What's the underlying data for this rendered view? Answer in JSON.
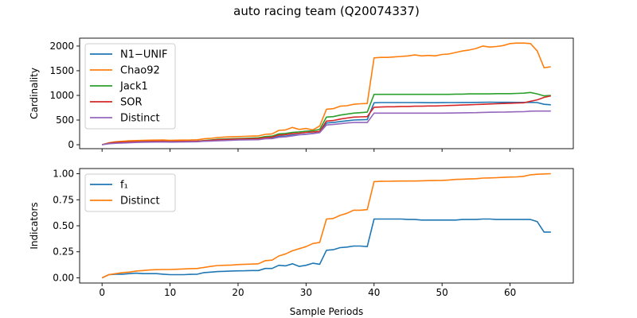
{
  "figure": {
    "title": "auto racing team (Q20074337)"
  },
  "colors": {
    "blue": "#1f77b4",
    "orange": "#ff7f0e",
    "green": "#2ca02c",
    "red": "#d62728",
    "purple": "#9467bd"
  },
  "chart_data": [
    {
      "type": "line",
      "title": "",
      "xlabel": "",
      "ylabel": "Cardinality",
      "xlim": [
        -3.3,
        69.3
      ],
      "ylim": [
        -80,
        2160
      ],
      "xticks": [
        0,
        10,
        20,
        30,
        40,
        50,
        60
      ],
      "xtick_labels": [],
      "yticks": [
        0,
        500,
        1000,
        1500,
        2000
      ],
      "ytick_labels": [
        "0",
        "500",
        "1000",
        "1500",
        "2000"
      ],
      "grid": false,
      "legend": "top-left",
      "series": [
        {
          "name": "N1−UNIF",
          "color": "#1f77b4",
          "x": [
            0,
            1,
            2,
            3,
            4,
            5,
            6,
            7,
            8,
            9,
            10,
            11,
            12,
            13,
            14,
            15,
            16,
            17,
            18,
            19,
            20,
            21,
            22,
            23,
            24,
            25,
            26,
            27,
            28,
            29,
            30,
            31,
            32,
            33,
            34,
            35,
            36,
            37,
            38,
            39,
            40,
            41,
            42,
            43,
            44,
            45,
            46,
            47,
            48,
            49,
            50,
            51,
            52,
            53,
            54,
            55,
            56,
            57,
            58,
            59,
            60,
            61,
            62,
            63,
            64,
            65,
            66
          ],
          "y": [
            0,
            25,
            40,
            45,
            50,
            55,
            60,
            62,
            64,
            66,
            60,
            62,
            63,
            65,
            68,
            75,
            80,
            90,
            95,
            100,
            104,
            108,
            112,
            115,
            130,
            135,
            170,
            175,
            195,
            205,
            215,
            230,
            250,
            440,
            450,
            470,
            485,
            500,
            505,
            510,
            850,
            855,
            855,
            855,
            855,
            855,
            855,
            853,
            852,
            852,
            853,
            854,
            855,
            856,
            857,
            858,
            860,
            862,
            860,
            860,
            860,
            858,
            858,
            860,
            855,
            820,
            810
          ]
        },
        {
          "name": "Chao92",
          "color": "#ff7f0e",
          "x": [
            0,
            1,
            2,
            3,
            4,
            5,
            6,
            7,
            8,
            9,
            10,
            11,
            12,
            13,
            14,
            15,
            16,
            17,
            18,
            19,
            20,
            21,
            22,
            23,
            24,
            25,
            26,
            27,
            28,
            29,
            30,
            31,
            32,
            33,
            34,
            35,
            36,
            37,
            38,
            39,
            40,
            41,
            42,
            43,
            44,
            45,
            46,
            47,
            48,
            49,
            50,
            51,
            52,
            53,
            54,
            55,
            56,
            57,
            58,
            59,
            60,
            61,
            62,
            63,
            64,
            65,
            66
          ],
          "y": [
            0,
            40,
            60,
            70,
            80,
            85,
            90,
            92,
            94,
            96,
            90,
            92,
            94,
            96,
            100,
            120,
            130,
            145,
            155,
            160,
            165,
            170,
            175,
            180,
            210,
            220,
            290,
            300,
            350,
            310,
            330,
            300,
            380,
            720,
            730,
            780,
            790,
            820,
            830,
            835,
            1760,
            1770,
            1770,
            1780,
            1790,
            1800,
            1820,
            1800,
            1810,
            1800,
            1830,
            1840,
            1870,
            1900,
            1920,
            1950,
            2000,
            1980,
            1990,
            2010,
            2050,
            2060,
            2060,
            2050,
            1900,
            1560,
            1580
          ]
        },
        {
          "name": "Jack1",
          "color": "#2ca02c",
          "x": [
            0,
            1,
            2,
            3,
            4,
            5,
            6,
            7,
            8,
            9,
            10,
            11,
            12,
            13,
            14,
            15,
            16,
            17,
            18,
            19,
            20,
            21,
            22,
            23,
            24,
            25,
            26,
            27,
            28,
            29,
            30,
            31,
            32,
            33,
            34,
            35,
            36,
            37,
            38,
            39,
            40,
            41,
            42,
            43,
            44,
            45,
            46,
            47,
            48,
            49,
            50,
            51,
            52,
            53,
            54,
            55,
            56,
            57,
            58,
            59,
            60,
            61,
            62,
            63,
            64,
            65,
            66
          ],
          "y": [
            0,
            30,
            45,
            50,
            55,
            60,
            65,
            67,
            69,
            70,
            65,
            67,
            69,
            70,
            72,
            85,
            95,
            110,
            115,
            120,
            125,
            130,
            135,
            140,
            165,
            175,
            220,
            230,
            250,
            260,
            275,
            285,
            310,
            560,
            570,
            600,
            620,
            640,
            650,
            660,
            1020,
            1020,
            1020,
            1020,
            1020,
            1020,
            1020,
            1020,
            1020,
            1020,
            1020,
            1020,
            1025,
            1025,
            1030,
            1030,
            1030,
            1030,
            1035,
            1035,
            1035,
            1040,
            1045,
            1060,
            1030,
            990,
            1000
          ]
        },
        {
          "name": "SOR",
          "color": "#d62728",
          "x": [
            0,
            1,
            2,
            3,
            4,
            5,
            6,
            7,
            8,
            9,
            10,
            11,
            12,
            13,
            14,
            15,
            16,
            17,
            18,
            19,
            20,
            21,
            22,
            23,
            24,
            25,
            26,
            27,
            28,
            29,
            30,
            31,
            32,
            33,
            34,
            35,
            36,
            37,
            38,
            39,
            40,
            41,
            42,
            43,
            44,
            45,
            46,
            47,
            48,
            49,
            50,
            51,
            52,
            53,
            54,
            55,
            56,
            57,
            58,
            59,
            60,
            61,
            62,
            63,
            64,
            65,
            66
          ],
          "y": [
            0,
            30,
            45,
            50,
            55,
            60,
            65,
            67,
            69,
            70,
            65,
            67,
            69,
            70,
            72,
            80,
            90,
            100,
            105,
            110,
            115,
            118,
            122,
            125,
            145,
            155,
            195,
            205,
            225,
            235,
            250,
            260,
            270,
            480,
            490,
            520,
            540,
            560,
            565,
            570,
            760,
            765,
            770,
            770,
            775,
            775,
            780,
            780,
            785,
            785,
            790,
            795,
            800,
            805,
            810,
            815,
            820,
            825,
            830,
            835,
            840,
            845,
            850,
            880,
            910,
            960,
            990
          ]
        },
        {
          "name": "Distinct",
          "color": "#9467bd",
          "x": [
            0,
            1,
            2,
            3,
            4,
            5,
            6,
            7,
            8,
            9,
            10,
            11,
            12,
            13,
            14,
            15,
            16,
            17,
            18,
            19,
            20,
            21,
            22,
            23,
            24,
            25,
            26,
            27,
            28,
            29,
            30,
            31,
            32,
            33,
            34,
            35,
            36,
            37,
            38,
            39,
            40,
            41,
            42,
            43,
            44,
            45,
            46,
            47,
            48,
            49,
            50,
            51,
            52,
            53,
            54,
            55,
            56,
            57,
            58,
            59,
            60,
            61,
            62,
            63,
            64,
            65,
            66
          ],
          "y": [
            0,
            20,
            30,
            35,
            40,
            45,
            50,
            52,
            54,
            56,
            52,
            54,
            56,
            58,
            60,
            70,
            75,
            80,
            85,
            90,
            95,
            98,
            100,
            102,
            120,
            125,
            150,
            160,
            180,
            200,
            210,
            225,
            245,
            400,
            410,
            425,
            440,
            450,
            450,
            450,
            640,
            640,
            640,
            640,
            640,
            640,
            640,
            640,
            640,
            640,
            640,
            642,
            644,
            646,
            648,
            650,
            655,
            658,
            660,
            662,
            665,
            668,
            670,
            680,
            682,
            683,
            683
          ]
        }
      ]
    },
    {
      "type": "line",
      "title": "",
      "xlabel": "Sample Periods",
      "ylabel": "Indicators",
      "xlim": [
        -3.3,
        69.3
      ],
      "ylim": [
        -0.05,
        1.05
      ],
      "xticks": [
        0,
        10,
        20,
        30,
        40,
        50,
        60
      ],
      "xtick_labels": [
        "0",
        "10",
        "20",
        "30",
        "40",
        "50",
        "60"
      ],
      "yticks": [
        0,
        0.25,
        0.5,
        0.75,
        1.0
      ],
      "ytick_labels": [
        "0.00",
        "0.25",
        "0.50",
        "0.75",
        "1.00"
      ],
      "grid": false,
      "legend": "top-left",
      "series": [
        {
          "name": "f₁",
          "color": "#1f77b4",
          "x": [
            0,
            1,
            2,
            3,
            4,
            5,
            6,
            7,
            8,
            9,
            10,
            11,
            12,
            13,
            14,
            15,
            16,
            17,
            18,
            19,
            20,
            21,
            22,
            23,
            24,
            25,
            26,
            27,
            28,
            29,
            30,
            31,
            32,
            33,
            34,
            35,
            36,
            37,
            38,
            39,
            40,
            41,
            42,
            43,
            44,
            45,
            46,
            47,
            48,
            49,
            50,
            51,
            52,
            53,
            54,
            55,
            56,
            57,
            58,
            59,
            60,
            61,
            62,
            63,
            64,
            65,
            66
          ],
          "y": [
            0.0,
            0.03,
            0.035,
            0.035,
            0.04,
            0.045,
            0.04,
            0.04,
            0.04,
            0.035,
            0.03,
            0.03,
            0.03,
            0.033,
            0.035,
            0.05,
            0.055,
            0.06,
            0.062,
            0.065,
            0.067,
            0.068,
            0.07,
            0.07,
            0.09,
            0.09,
            0.12,
            0.115,
            0.135,
            0.11,
            0.12,
            0.14,
            0.13,
            0.265,
            0.27,
            0.29,
            0.295,
            0.305,
            0.305,
            0.3,
            0.565,
            0.565,
            0.565,
            0.565,
            0.565,
            0.56,
            0.56,
            0.555,
            0.555,
            0.555,
            0.555,
            0.555,
            0.555,
            0.56,
            0.56,
            0.56,
            0.565,
            0.565,
            0.56,
            0.56,
            0.56,
            0.56,
            0.56,
            0.56,
            0.54,
            0.44,
            0.44
          ]
        },
        {
          "name": "Distinct",
          "color": "#ff7f0e",
          "x": [
            0,
            1,
            2,
            3,
            4,
            5,
            6,
            7,
            8,
            9,
            10,
            11,
            12,
            13,
            14,
            15,
            16,
            17,
            18,
            19,
            20,
            21,
            22,
            23,
            24,
            25,
            26,
            27,
            28,
            29,
            30,
            31,
            32,
            33,
            34,
            35,
            36,
            37,
            38,
            39,
            40,
            41,
            42,
            43,
            44,
            45,
            46,
            47,
            48,
            49,
            50,
            51,
            52,
            53,
            54,
            55,
            56,
            57,
            58,
            59,
            60,
            61,
            62,
            63,
            64,
            65,
            66
          ],
          "y": [
            0.0,
            0.03,
            0.04,
            0.05,
            0.055,
            0.065,
            0.07,
            0.075,
            0.078,
            0.08,
            0.08,
            0.082,
            0.085,
            0.088,
            0.09,
            0.1,
            0.11,
            0.118,
            0.12,
            0.123,
            0.127,
            0.13,
            0.132,
            0.135,
            0.165,
            0.17,
            0.21,
            0.23,
            0.26,
            0.28,
            0.3,
            0.33,
            0.34,
            0.565,
            0.57,
            0.6,
            0.62,
            0.65,
            0.65,
            0.655,
            0.925,
            0.927,
            0.928,
            0.929,
            0.93,
            0.93,
            0.93,
            0.932,
            0.934,
            0.935,
            0.936,
            0.94,
            0.945,
            0.948,
            0.95,
            0.952,
            0.958,
            0.96,
            0.962,
            0.965,
            0.968,
            0.97,
            0.975,
            0.99,
            0.995,
            0.998,
            1.0
          ]
        }
      ]
    }
  ]
}
